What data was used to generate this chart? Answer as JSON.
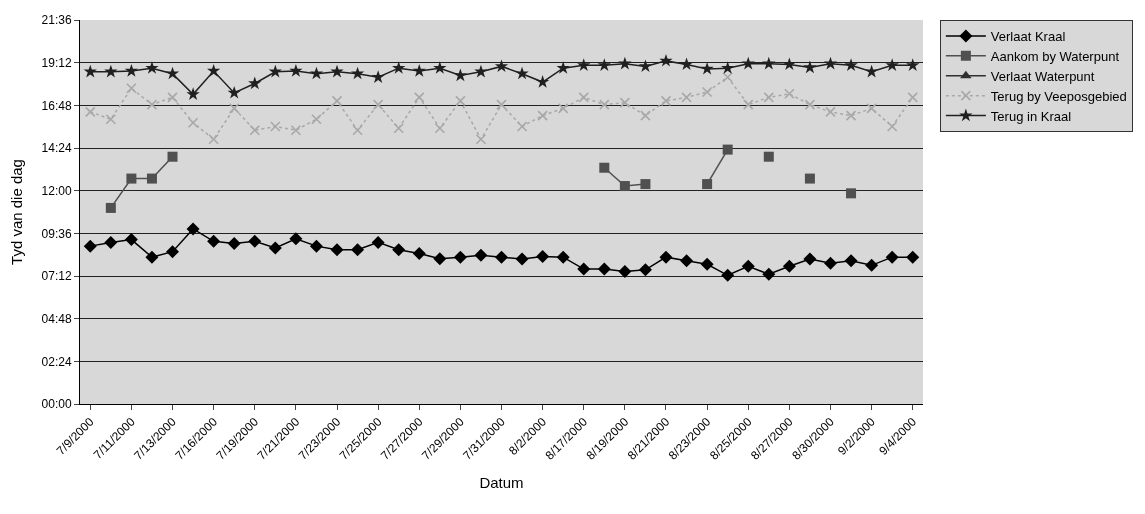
{
  "chart_data": {
    "type": "line",
    "xlabel": "Datum",
    "ylabel": "Tyd van die dag",
    "categories": [
      "7/9/2000",
      null,
      "7/11/2000",
      null,
      "7/13/2000",
      null,
      "7/16/2000",
      null,
      "7/19/2000",
      null,
      "7/21/2000",
      null,
      "7/23/2000",
      null,
      "7/25/2000",
      null,
      "7/27/2000",
      null,
      "7/29/2000",
      null,
      "7/31/2000",
      null,
      "8/2/2000",
      null,
      "8/17/2000",
      null,
      "8/19/2000",
      null,
      "8/21/2000",
      null,
      "8/23/2000",
      null,
      "8/25/2000",
      null,
      "8/27/2000",
      null,
      "8/30/2000",
      null,
      "9/2/2000",
      null,
      "9/4/2000"
    ],
    "series": [
      {
        "name": "Verlaat Kraal",
        "color": "#000000",
        "marker": "diamond",
        "line_style": "solid",
        "values": [
          8.88,
          9.09,
          9.25,
          8.26,
          8.57,
          9.85,
          9.15,
          9.03,
          9.15,
          8.78,
          9.29,
          8.88,
          8.68,
          8.68,
          9.09,
          8.68,
          8.47,
          8.17,
          8.26,
          8.37,
          8.26,
          8.16,
          8.3,
          8.26,
          7.59,
          7.59,
          7.45,
          7.55,
          8.26,
          8.06,
          7.86,
          7.24,
          7.75,
          7.3,
          7.75,
          8.16,
          7.92,
          8.06,
          7.8,
          8.26,
          8.26
        ]
      },
      {
        "name": "Aankom by Waterpunt",
        "color": "#505050",
        "marker": "square",
        "line_style": "solid",
        "values": [
          null,
          11.03,
          12.68,
          12.68,
          13.91,
          null,
          null,
          null,
          null,
          null,
          null,
          null,
          null,
          null,
          null,
          null,
          null,
          null,
          null,
          null,
          null,
          null,
          null,
          null,
          null,
          13.29,
          12.26,
          12.37,
          null,
          null,
          12.37,
          14.31,
          null,
          13.91,
          null,
          12.68,
          null,
          11.85,
          null,
          null,
          null
        ]
      },
      {
        "name": "Verlaat Waterpunt",
        "color": "#303030",
        "marker": "triangle",
        "line_style": "solid",
        "values": [
          null,
          null,
          null,
          null,
          null,
          null,
          null,
          null,
          null,
          null,
          null,
          null,
          null,
          null,
          null,
          null,
          null,
          null,
          null,
          null,
          null,
          null,
          null,
          null,
          null,
          null,
          null,
          null,
          null,
          null,
          null,
          null,
          null,
          null,
          null,
          null,
          null,
          null,
          null,
          null,
          null
        ]
      },
      {
        "name": "Terug by Veeposgebied",
        "color": "#a8a8a8",
        "marker": "cross",
        "line_style": "dotted",
        "values": [
          16.43,
          16.02,
          17.76,
          16.84,
          17.25,
          15.82,
          14.89,
          16.63,
          15.4,
          15.61,
          15.4,
          16.02,
          17.05,
          15.4,
          16.84,
          15.51,
          17.25,
          15.51,
          17.05,
          14.89,
          16.84,
          15.61,
          16.22,
          16.63,
          17.25,
          16.84,
          16.95,
          16.22,
          17.05,
          17.25,
          17.55,
          18.38,
          16.84,
          17.25,
          17.45,
          16.84,
          16.43,
          16.22,
          16.63,
          15.61,
          17.25
        ]
      },
      {
        "name": "Terug in Kraal",
        "color": "#202020",
        "marker": "star",
        "line_style": "solid",
        "values": [
          18.69,
          18.69,
          18.73,
          18.89,
          18.58,
          17.42,
          18.73,
          17.5,
          18.03,
          18.69,
          18.73,
          18.58,
          18.69,
          18.58,
          18.38,
          18.89,
          18.73,
          18.89,
          18.48,
          18.69,
          18.99,
          18.58,
          18.11,
          18.89,
          19.05,
          19.05,
          19.14,
          18.99,
          19.3,
          19.1,
          18.85,
          18.89,
          19.14,
          19.14,
          19.1,
          18.93,
          19.14,
          19.05,
          18.69,
          19.05,
          19.05
        ]
      }
    ],
    "ylim": [
      0,
      21.6
    ],
    "yticks": [
      {
        "value": 0,
        "label": "00:00"
      },
      {
        "value": 2.4,
        "label": "02:24"
      },
      {
        "value": 4.8,
        "label": "04:48"
      },
      {
        "value": 7.2,
        "label": "07:12"
      },
      {
        "value": 9.6,
        "label": "09:36"
      },
      {
        "value": 12,
        "label": "12:00"
      },
      {
        "value": 14.4,
        "label": "14:24"
      },
      {
        "value": 16.8,
        "label": "16:48"
      },
      {
        "value": 19.2,
        "label": "19:12"
      },
      {
        "value": 21.6,
        "label": "21:36"
      }
    ],
    "grid": "y",
    "legend": "top right"
  }
}
